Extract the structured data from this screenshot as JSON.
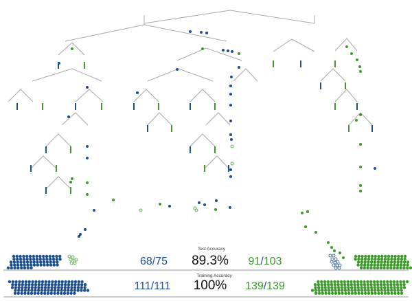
{
  "colors": {
    "blue": "#1d4f8f",
    "green": "#3d9a2b",
    "branch": "#a8a8a8",
    "divider": "#9a9a9a"
  },
  "test": {
    "label": "Test Accuracy",
    "left_correct": "68",
    "left_total": "75",
    "percent": "89.3%",
    "right_correct": "91",
    "right_total": "103"
  },
  "training": {
    "label": "Training Accuracy",
    "left_correct": "111",
    "left_total": "111",
    "percent": "100%",
    "right_correct": "139",
    "right_total": "139"
  },
  "stacks": {
    "test_left_correct_count": 68,
    "test_left_misclassified_count": 7,
    "test_right_correct_count": 91,
    "test_right_misclassified_count": 12,
    "training_left_count": 111,
    "training_right_count": 139
  }
}
